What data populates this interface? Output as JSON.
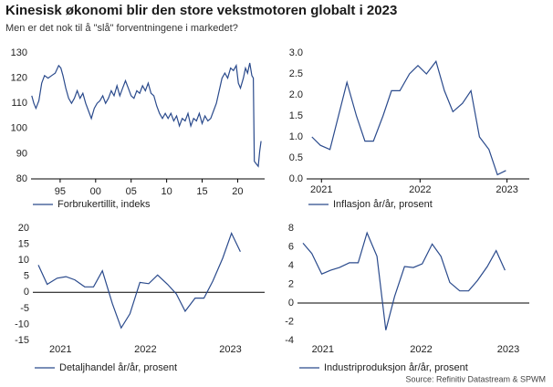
{
  "title": "Kinesisk økonomi blir den store vekstmotoren globalt i 2023",
  "subtitle": "Men er det nok til å \"slå\" forventningene i markedet?",
  "source": "Source: Refinitiv Datastream & SPWM",
  "chart_data": [
    {
      "type": "line",
      "x": [
        1991,
        1991.3,
        1991.6,
        1992,
        1992.4,
        1992.8,
        1993.3,
        1993.8,
        1994.3,
        1994.8,
        1995.1,
        1995.4,
        1995.8,
        1996.2,
        1996.6,
        1997,
        1997.4,
        1997.8,
        1998.2,
        1998.6,
        1999,
        1999.4,
        1999.8,
        2000.2,
        2000.6,
        2001,
        2001.4,
        2001.8,
        2002.2,
        2002.6,
        2003,
        2003.4,
        2003.8,
        2004.2,
        2004.6,
        2005,
        2005.4,
        2005.8,
        2006.2,
        2006.6,
        2007,
        2007.4,
        2007.8,
        2008.2,
        2008.6,
        2009,
        2009.4,
        2009.8,
        2010.2,
        2010.6,
        2011,
        2011.4,
        2011.8,
        2012.2,
        2012.6,
        2013,
        2013.4,
        2013.8,
        2014.2,
        2014.6,
        2015,
        2015.4,
        2015.8,
        2016.2,
        2016.6,
        2017,
        2017.4,
        2017.8,
        2018.2,
        2018.6,
        2019,
        2019.4,
        2019.8,
        2020.1,
        2020.4,
        2020.8,
        2021.1,
        2021.4,
        2021.7,
        2022,
        2022.2,
        2022.35,
        2022.6,
        2022.9,
        2023.1,
        2023.3
      ],
      "series": [
        {
          "name": "Forbrukertillit, indeks",
          "color": "#2a4a8c",
          "values": [
            113,
            110,
            108,
            111,
            118,
            121,
            120,
            121,
            122,
            125,
            124,
            121,
            116,
            112,
            110,
            112,
            115,
            112,
            114,
            110,
            107,
            104,
            108,
            110,
            111,
            113,
            110,
            112,
            115,
            113,
            117,
            113,
            116,
            119,
            116,
            113,
            112,
            115,
            114,
            117,
            115,
            118,
            114,
            113,
            109,
            106,
            104,
            106,
            104,
            106,
            103,
            105,
            101,
            104,
            103,
            106,
            101,
            104,
            103,
            106,
            102,
            105,
            103,
            104,
            107,
            110,
            115,
            120,
            122,
            120,
            124,
            123,
            125,
            118,
            116,
            120,
            124,
            122,
            126,
            121,
            120,
            87,
            86,
            85,
            91,
            95
          ]
        }
      ],
      "xlim": [
        1990.9,
        2023.8
      ],
      "xticks": [
        {
          "value": 1995,
          "label": "95"
        },
        {
          "value": 2000,
          "label": "00"
        },
        {
          "value": 2005,
          "label": "05"
        },
        {
          "value": 2010,
          "label": "10"
        },
        {
          "value": 2015,
          "label": "15"
        },
        {
          "value": 2020,
          "label": "20"
        }
      ],
      "ylim": [
        80,
        130
      ],
      "yticks": [
        80,
        90,
        100,
        110,
        120,
        130
      ]
    },
    {
      "type": "line",
      "x": [
        2021.5,
        2021.58,
        2021.67,
        2021.75,
        2021.83,
        2021.92,
        2022.0,
        2022.08,
        2022.17,
        2022.25,
        2022.33,
        2022.42,
        2022.5,
        2022.58,
        2022.67,
        2022.75,
        2022.83,
        2022.92,
        2023.0,
        2023.08,
        2023.17,
        2023.25,
        2023.33
      ],
      "series": [
        {
          "name": "Inflasjon år/år, prosent",
          "color": "#2a4a8c",
          "values": [
            1.0,
            0.8,
            0.7,
            1.5,
            2.3,
            1.5,
            0.9,
            0.9,
            1.5,
            2.1,
            2.1,
            2.5,
            2.7,
            2.5,
            2.8,
            2.1,
            1.6,
            1.8,
            2.1,
            1.0,
            0.7,
            0.1,
            0.2
          ]
        }
      ],
      "xlim": [
        2021.45,
        2023.55
      ],
      "xticks": [
        {
          "value": 2021.59,
          "label": "2021"
        },
        {
          "value": 2022.52,
          "label": "2022"
        },
        {
          "value": 2023.34,
          "label": "2023"
        }
      ],
      "ylim": [
        0,
        3
      ],
      "yticks": [
        {
          "value": 0,
          "label": "0.0"
        },
        0.5,
        {
          "value": 1,
          "label": "1.0"
        },
        1.5,
        {
          "value": 2,
          "label": "2.0"
        },
        2.5,
        {
          "value": 3,
          "label": "3.0"
        }
      ]
    },
    {
      "type": "line",
      "x": [
        2021.5,
        2021.58,
        2021.67,
        2021.75,
        2021.83,
        2021.92,
        2022.0,
        2022.08,
        2022.17,
        2022.25,
        2022.33,
        2022.42,
        2022.5,
        2022.58,
        2022.67,
        2022.75,
        2022.83,
        2022.92,
        2023.0,
        2023.08,
        2023.17,
        2023.25,
        2023.33
      ],
      "series": [
        {
          "name": "Detaljhandel år/år, prosent",
          "color": "#2a4a8c",
          "values": [
            8.5,
            2.5,
            4.4,
            4.9,
            3.9,
            1.7,
            1.7,
            6.7,
            -3.5,
            -11.1,
            -6.7,
            3.1,
            2.7,
            5.4,
            2.5,
            -0.5,
            -5.9,
            -1.8,
            -1.8,
            3.5,
            10.6,
            18.4,
            12.7
          ]
        }
      ],
      "xlim": [
        2021.45,
        2023.55
      ],
      "xticks": [
        {
          "value": 2021.7,
          "label": "2021"
        },
        {
          "value": 2022.47,
          "label": "2022"
        },
        {
          "value": 2023.24,
          "label": "2023"
        }
      ],
      "ylim": [
        -15,
        20
      ],
      "yticks": [
        -15,
        -10,
        -5,
        0,
        5,
        10,
        15,
        20
      ]
    },
    {
      "type": "line",
      "x": [
        2021.5,
        2021.58,
        2021.67,
        2021.75,
        2021.83,
        2021.92,
        2022.0,
        2022.08,
        2022.17,
        2022.25,
        2022.33,
        2022.42,
        2022.5,
        2022.58,
        2022.67,
        2022.75,
        2022.83,
        2022.92,
        2023.0,
        2023.08,
        2023.17,
        2023.25,
        2023.33
      ],
      "series": [
        {
          "name": "Industriproduksjon år/år, prosent",
          "color": "#2a4a8c",
          "values": [
            6.4,
            5.3,
            3.1,
            3.5,
            3.8,
            4.3,
            4.3,
            7.5,
            5.0,
            -2.9,
            0.7,
            3.9,
            3.8,
            4.2,
            6.3,
            5.0,
            2.2,
            1.3,
            1.3,
            2.4,
            3.9,
            5.6,
            3.5
          ]
        }
      ],
      "xlim": [
        2021.45,
        2023.55
      ],
      "xticks": [
        {
          "value": 2021.68,
          "label": "2021"
        },
        {
          "value": 2022.57,
          "label": "2022"
        },
        {
          "value": 2023.36,
          "label": "2023"
        }
      ],
      "ylim": [
        -4,
        8
      ],
      "yticks": [
        -4,
        -2,
        0,
        2,
        4,
        6,
        8
      ]
    }
  ]
}
